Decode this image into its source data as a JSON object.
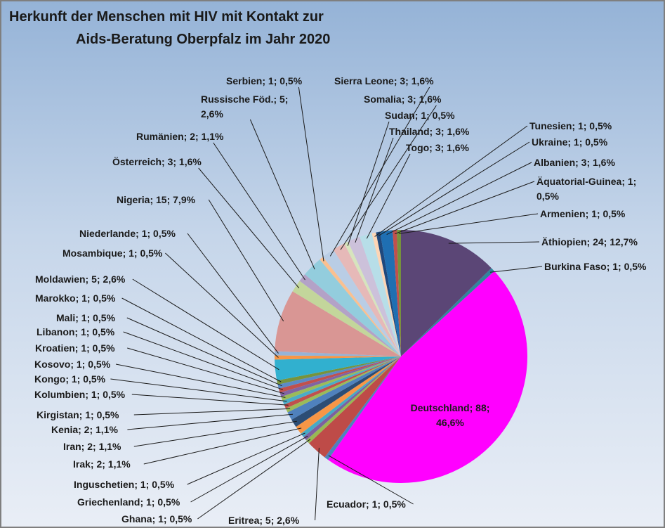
{
  "chart_data": {
    "type": "pie",
    "title_lines": [
      "Herkunft der Menschen mit HIV mit Kontakt zur",
      "Aids-Beratung Oberpfalz  im Jahr 2020"
    ],
    "slices": [
      {
        "name": "Äthiopien",
        "value": 24,
        "percent": "12,7%",
        "color": "#5b4676",
        "label": [
          "Äthiopien; 24; 12,7%"
        ]
      },
      {
        "name": "Burkina Faso",
        "value": 1,
        "percent": "0,5%",
        "color": "#31859c",
        "label": [
          "Burkina Faso; 1; 0,5%"
        ]
      },
      {
        "name": "Deutschland",
        "value": 88,
        "percent": "46,6%",
        "color": "#ff00ff",
        "label": [
          "Deutschland; 88;",
          "46,6%"
        ]
      },
      {
        "name": "Ecuador",
        "value": 1,
        "percent": "0,5%",
        "color": "#4f81bd",
        "label": [
          "Ecuador; 1; 0,5%"
        ]
      },
      {
        "name": "Eritrea",
        "value": 5,
        "percent": "2,6%",
        "color": "#be4b48",
        "label": [
          "Eritrea; 5; 2,6%"
        ]
      },
      {
        "name": "Ghana",
        "value": 1,
        "percent": "0,5%",
        "color": "#98b954",
        "label": [
          "Ghana; 1; 0,5%"
        ]
      },
      {
        "name": "Griechenland",
        "value": 1,
        "percent": "0,5%",
        "color": "#7d60a0",
        "label": [
          "Griechenland; 1; 0,5%"
        ]
      },
      {
        "name": "Inguschetien",
        "value": 1,
        "percent": "0,5%",
        "color": "#46aac5",
        "label": [
          "Inguschetien; 1; 0,5%"
        ]
      },
      {
        "name": "Irak",
        "value": 2,
        "percent": "1,1%",
        "color": "#f79646",
        "label": [
          "Irak; 2; 1,1%"
        ]
      },
      {
        "name": "Iran",
        "value": 2,
        "percent": "1,1%",
        "color": "#2c4d75",
        "label": [
          "Iran; 2; 1,1%"
        ]
      },
      {
        "name": "Kenia",
        "value": 2,
        "percent": "1,1%",
        "color": "#4f81bd",
        "label": [
          "Kenia; 2; 1,1%"
        ]
      },
      {
        "name": "Kirgistan",
        "value": 1,
        "percent": "0,5%",
        "color": "#9bbb59",
        "label": [
          "Kirgistan; 1; 0,5%"
        ]
      },
      {
        "name": "Kolumbien",
        "value": 1,
        "percent": "0,5%",
        "color": "#c0504d",
        "label": [
          "Kolumbien; 1; 0,5%"
        ]
      },
      {
        "name": "Kongo",
        "value": 1,
        "percent": "0,5%",
        "color": "#4bacc6",
        "label": [
          "Kongo; 1; 0,5%"
        ]
      },
      {
        "name": "Kosovo",
        "value": 1,
        "percent": "0,5%",
        "color": "#9bbb59",
        "label": [
          "Kosovo; 1; 0,5%"
        ]
      },
      {
        "name": "Kroatien",
        "value": 1,
        "percent": "0,5%",
        "color": "#8064a2",
        "label": [
          "Kroatien; 1; 0,5%"
        ]
      },
      {
        "name": "Libanon",
        "value": 1,
        "percent": "0,5%",
        "color": "#c0504d",
        "label": [
          "Libanon; 1; 0,5%"
        ]
      },
      {
        "name": "Mali",
        "value": 1,
        "percent": "0,5%",
        "color": "#5b8bc6",
        "label": [
          "Mali; 1; 0,5%"
        ]
      },
      {
        "name": "Marokko",
        "value": 1,
        "percent": "0,5%",
        "color": "#77933c",
        "label": [
          "Marokko; 1; 0,5%"
        ]
      },
      {
        "name": "Moldawien",
        "value": 5,
        "percent": "2,6%",
        "color": "#31b0cf",
        "label": [
          "Moldawien; 5; 2,6%"
        ]
      },
      {
        "name": "Mosambique",
        "value": 1,
        "percent": "0,5%",
        "color": "#f79646",
        "label": [
          "Mosambique; 1; 0,5%"
        ]
      },
      {
        "name": "Niederlande",
        "value": 1,
        "percent": "0,5%",
        "color": "#95b3d7",
        "label": [
          "Niederlande; 1; 0,5%"
        ]
      },
      {
        "name": "Nigeria",
        "value": 15,
        "percent": "7,9%",
        "color": "#d99694",
        "label": [
          "Nigeria; 15; 7,9%"
        ]
      },
      {
        "name": "Österreich",
        "value": 3,
        "percent": "1,6%",
        "color": "#c3d69b",
        "label": [
          "Österreich; 3; 1,6%"
        ]
      },
      {
        "name": "Rumänien",
        "value": 2,
        "percent": "1,1%",
        "color": "#b3a2c7",
        "label": [
          "Rumänien; 2; 1,1%"
        ]
      },
      {
        "name": "Russische Föd.",
        "value": 5,
        "percent": "2,6%",
        "color": "#93cddd",
        "label": [
          "Russische Föd.; 5;",
          "2,6%"
        ]
      },
      {
        "name": "Serbien",
        "value": 1,
        "percent": "0,5%",
        "color": "#fac090",
        "label": [
          "Serbien; 1; 0,5%"
        ]
      },
      {
        "name": "Sierra Leone",
        "value": 3,
        "percent": "1,6%",
        "color": "#b9cde5",
        "label": [
          "Sierra Leone; 3; 1,6%"
        ]
      },
      {
        "name": "Somalia",
        "value": 3,
        "percent": "1,6%",
        "color": "#e6b9b8",
        "label": [
          "Somalia; 3; 1,6%"
        ]
      },
      {
        "name": "Sudan",
        "value": 1,
        "percent": "0,5%",
        "color": "#d7e4bd",
        "label": [
          "Sudan; 1; 0,5%"
        ]
      },
      {
        "name": "Thailand",
        "value": 3,
        "percent": "1,6%",
        "color": "#ccc1da",
        "label": [
          "Thailand; 3; 1,6%"
        ]
      },
      {
        "name": "Togo",
        "value": 3,
        "percent": "1,6%",
        "color": "#b7dee8",
        "label": [
          "Togo; 3; 1,6%"
        ]
      },
      {
        "name": "Tunesien",
        "value": 1,
        "percent": "0,5%",
        "color": "#fcd5b5",
        "label": [
          "Tunesien; 1; 0,5%"
        ]
      },
      {
        "name": "Ukraine",
        "value": 1,
        "percent": "0,5%",
        "color": "#1f497d",
        "label": [
          "Ukraine; 1; 0,5%"
        ]
      },
      {
        "name": "Albanien",
        "value": 3,
        "percent": "1,6%",
        "color": "#1f6fb2",
        "label": [
          "Albanien; 3; 1,6%"
        ]
      },
      {
        "name": "Äquatorial-Guinea",
        "value": 1,
        "percent": "0,5%",
        "color": "#c0504d",
        "label": [
          "Äquatorial-Guinea; 1;",
          "0,5%"
        ]
      },
      {
        "name": "Armenien",
        "value": 1,
        "percent": "0,5%",
        "color": "#76923c",
        "label": [
          "Armenien; 1; 0,5%"
        ]
      }
    ]
  }
}
